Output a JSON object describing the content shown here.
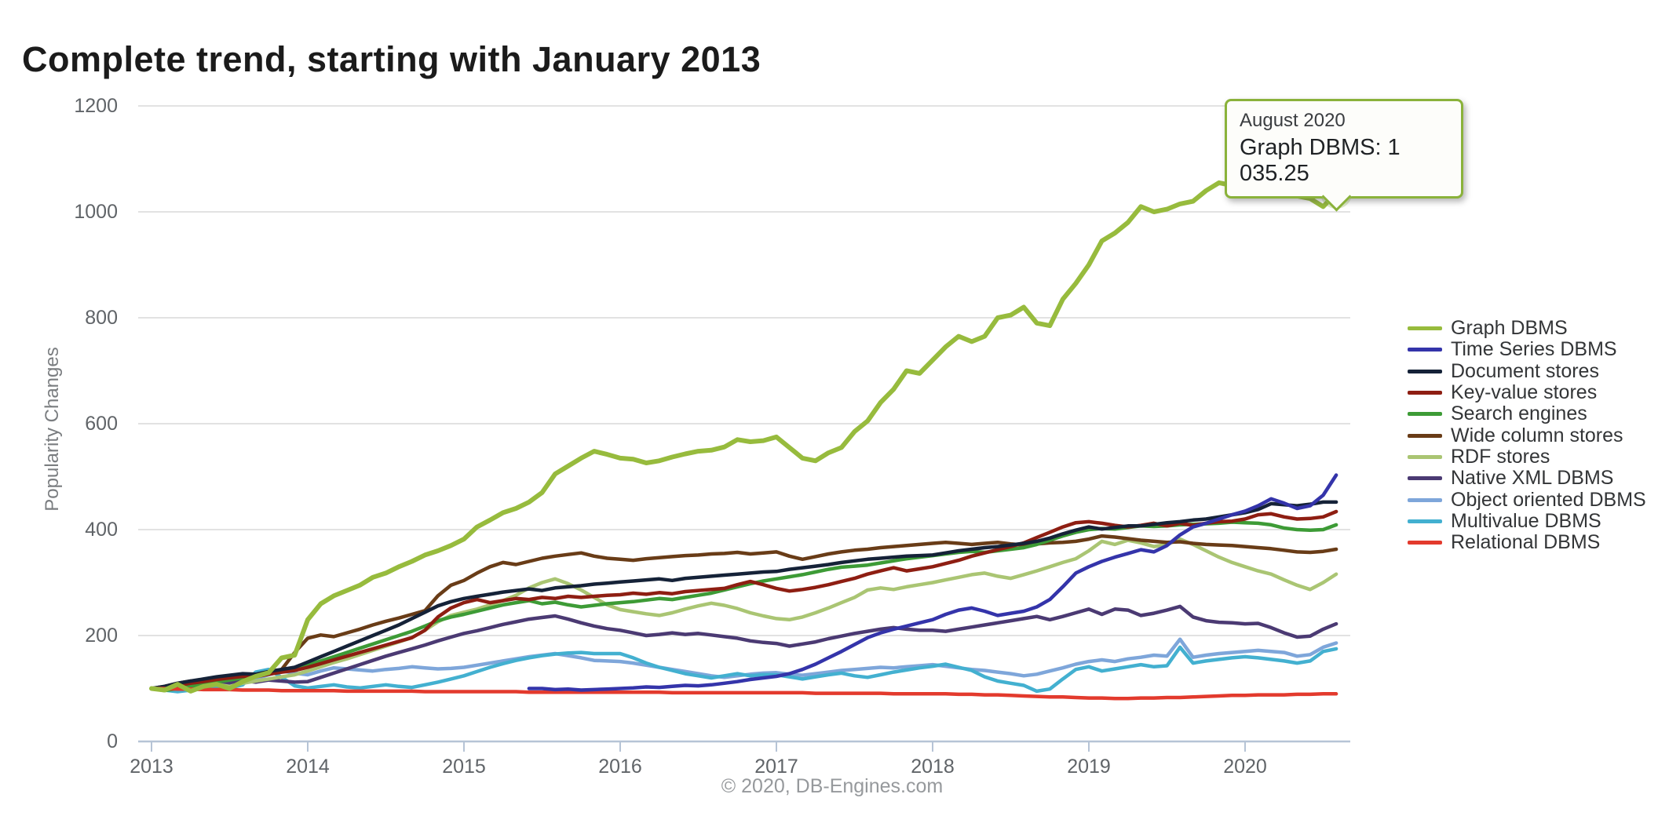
{
  "title": "Complete trend, starting with January 2013",
  "y_axis": {
    "label": "Popularity Changes",
    "ticks": [
      0,
      200,
      400,
      600,
      800,
      1000,
      1200
    ]
  },
  "x_axis": {
    "years": [
      "2013",
      "2014",
      "2015",
      "2016",
      "2017",
      "2018",
      "2019",
      "2020"
    ]
  },
  "footer": {
    "credit": "© 2020, DB-Engines.com"
  },
  "tooltip": {
    "date_label": "August 2020",
    "value_label": "Graph DBMS: 1 035.25",
    "accent_color": "#8ab23a"
  },
  "chart_data": {
    "type": "line",
    "title": "Complete trend, starting with January 2013",
    "ylabel": "Popularity Changes",
    "xlabel": "",
    "x_unit": "month",
    "x_start": "2013-01",
    "x_end": "2020-08",
    "months_total": 92,
    "ylim": [
      0,
      1260
    ],
    "grid": true,
    "legend_position": "right",
    "axis_color": "#b6c4d6",
    "grid_color": "#d9d9d9",
    "highlight": {
      "series": "Graph DBMS",
      "month": "2020-08",
      "value": 1035.25,
      "marker_color": "#8cb43c"
    },
    "series": [
      {
        "name": "Graph DBMS",
        "color": "#97bb3d",
        "stroke_width": 6,
        "start_month_index": 0,
        "values": [
          100,
          97,
          108,
          95,
          104,
          108,
          100,
          113,
          123,
          130,
          158,
          163,
          230,
          260,
          275,
          285,
          295,
          310,
          318,
          330,
          340,
          352,
          360,
          370,
          382,
          405,
          418,
          432,
          440,
          452,
          470,
          505,
          520,
          535,
          548,
          542,
          535,
          533,
          526,
          530,
          537,
          543,
          548,
          550,
          556,
          570,
          566,
          568,
          575,
          555,
          535,
          530,
          545,
          555,
          585,
          605,
          640,
          665,
          700,
          695,
          720,
          745,
          765,
          755,
          765,
          800,
          805,
          820,
          790,
          785,
          835,
          865,
          900,
          945,
          960,
          980,
          1010,
          1000,
          1005,
          1015,
          1020,
          1040,
          1055,
          1050,
          1055,
          1065,
          1060,
          1050,
          1030,
          1025,
          1010,
          1035.25
        ]
      },
      {
        "name": "Time Series DBMS",
        "color": "#3434aa",
        "stroke_width": 4.5,
        "start_month_index": 29,
        "values": [
          100,
          100,
          98,
          99,
          97,
          98,
          99,
          100,
          101,
          103,
          102,
          104,
          106,
          105,
          107,
          110,
          113,
          117,
          120,
          123,
          128,
          136,
          146,
          158,
          170,
          183,
          196,
          205,
          212,
          218,
          224,
          230,
          240,
          248,
          252,
          246,
          238,
          242,
          246,
          254,
          268,
          292,
          318,
          330,
          340,
          348,
          355,
          362,
          358,
          370,
          390,
          405,
          412,
          420,
          428,
          435,
          445,
          458,
          450,
          440,
          445,
          465,
          503
        ]
      },
      {
        "name": "Document stores",
        "color": "#152238",
        "stroke_width": 4.5,
        "start_month_index": 0,
        "values": [
          100,
          104,
          110,
          114,
          118,
          122,
          125,
          128,
          127,
          132,
          136,
          140,
          150,
          160,
          170,
          180,
          190,
          200,
          210,
          220,
          232,
          244,
          256,
          264,
          270,
          274,
          278,
          282,
          285,
          288,
          285,
          290,
          292,
          294,
          297,
          299,
          301,
          303,
          305,
          307,
          304,
          308,
          310,
          312,
          314,
          316,
          318,
          320,
          321,
          325,
          328,
          331,
          334,
          338,
          341,
          344,
          346,
          348,
          350,
          351,
          352,
          356,
          360,
          363,
          366,
          368,
          371,
          374,
          378,
          384,
          392,
          399,
          405,
          401,
          404,
          407,
          407,
          410,
          413,
          415,
          418,
          420,
          424,
          428,
          432,
          438,
          449,
          447,
          445,
          448,
          452,
          452
        ]
      },
      {
        "name": "Key-value stores",
        "color": "#8e1e12",
        "stroke_width": 4.5,
        "start_month_index": 0,
        "values": [
          100,
          102,
          106,
          110,
          113,
          117,
          120,
          123,
          122,
          127,
          131,
          134,
          140,
          147,
          154,
          161,
          168,
          175,
          182,
          189,
          196,
          210,
          235,
          252,
          262,
          268,
          262,
          266,
          270,
          268,
          272,
          270,
          274,
          272,
          274,
          276,
          277,
          280,
          278,
          281,
          279,
          283,
          285,
          287,
          289,
          296,
          302,
          296,
          289,
          284,
          287,
          291,
          296,
          302,
          308,
          316,
          322,
          328,
          322,
          326,
          330,
          336,
          342,
          350,
          356,
          362,
          368,
          375,
          385,
          395,
          405,
          413,
          415,
          412,
          408,
          405,
          408,
          412,
          407,
          412,
          408,
          412,
          415,
          416,
          420,
          428,
          430,
          424,
          420,
          421,
          424,
          434
        ]
      },
      {
        "name": "Search engines",
        "color": "#3d9b36",
        "stroke_width": 4.5,
        "start_month_index": 0,
        "values": [
          100,
          96,
          100,
          104,
          108,
          112,
          116,
          120,
          124,
          128,
          132,
          136,
          144,
          152,
          160,
          168,
          176,
          184,
          192,
          200,
          208,
          218,
          228,
          235,
          240,
          246,
          252,
          258,
          262,
          266,
          260,
          263,
          258,
          254,
          257,
          260,
          262,
          264,
          267,
          270,
          268,
          272,
          276,
          280,
          286,
          292,
          298,
          303,
          307,
          311,
          315,
          320,
          325,
          329,
          331,
          333,
          337,
          341,
          345,
          348,
          351,
          354,
          357,
          359,
          357,
          360,
          363,
          366,
          372,
          380,
          388,
          395,
          400,
          402,
          401,
          404,
          407,
          406,
          407,
          409,
          410,
          411,
          412,
          414,
          413,
          412,
          409,
          403,
          400,
          399,
          400,
          409
        ]
      },
      {
        "name": "Wide column stores",
        "color": "#693c17",
        "stroke_width": 4.5,
        "start_month_index": 0,
        "values": [
          100,
          104,
          110,
          114,
          112,
          118,
          122,
          126,
          124,
          130,
          136,
          168,
          195,
          201,
          198,
          205,
          212,
          220,
          227,
          233,
          240,
          247,
          275,
          295,
          304,
          318,
          330,
          338,
          334,
          340,
          346,
          350,
          353,
          356,
          350,
          346,
          344,
          342,
          345,
          347,
          349,
          351,
          352,
          354,
          355,
          357,
          354,
          356,
          358,
          350,
          344,
          349,
          354,
          358,
          361,
          363,
          366,
          368,
          370,
          372,
          374,
          376,
          374,
          372,
          374,
          376,
          373,
          371,
          373,
          375,
          376,
          378,
          382,
          388,
          386,
          383,
          380,
          378,
          376,
          377,
          374,
          372,
          371,
          370,
          368,
          366,
          364,
          361,
          358,
          357,
          359,
          363
        ]
      },
      {
        "name": "RDF stores",
        "color": "#aac573",
        "stroke_width": 4.5,
        "start_month_index": 0,
        "values": [
          100,
          98,
          103,
          100,
          105,
          108,
          104,
          110,
          114,
          118,
          122,
          126,
          133,
          141,
          149,
          156,
          164,
          172,
          180,
          188,
          196,
          210,
          226,
          238,
          244,
          250,
          258,
          266,
          276,
          290,
          300,
          307,
          298,
          286,
          272,
          258,
          249,
          245,
          241,
          238,
          243,
          250,
          256,
          261,
          257,
          251,
          243,
          237,
          232,
          230,
          235,
          243,
          252,
          262,
          272,
          286,
          290,
          287,
          292,
          296,
          300,
          305,
          310,
          315,
          318,
          312,
          308,
          315,
          322,
          330,
          338,
          345,
          360,
          378,
          372,
          380,
          375,
          368,
          372,
          382,
          372,
          360,
          348,
          338,
          330,
          322,
          316,
          305,
          295,
          287,
          300,
          316
        ]
      },
      {
        "name": "Native XML DBMS",
        "color": "#4b3a73",
        "stroke_width": 4.5,
        "start_month_index": 0,
        "values": [
          100,
          102,
          106,
          103,
          108,
          112,
          110,
          115,
          112,
          116,
          114,
          112,
          113,
          121,
          129,
          137,
          145,
          153,
          161,
          168,
          175,
          182,
          190,
          197,
          204,
          209,
          215,
          221,
          226,
          231,
          234,
          237,
          231,
          224,
          218,
          213,
          210,
          205,
          200,
          202,
          205,
          202,
          204,
          201,
          198,
          195,
          190,
          187,
          185,
          180,
          184,
          188,
          194,
          199,
          204,
          208,
          212,
          215,
          212,
          210,
          210,
          208,
          212,
          216,
          220,
          224,
          228,
          232,
          236,
          230,
          236,
          243,
          250,
          240,
          250,
          248,
          238,
          242,
          248,
          255,
          235,
          228,
          225,
          224,
          222,
          223,
          215,
          205,
          197,
          199,
          212,
          222
        ]
      },
      {
        "name": "Object oriented DBMS",
        "color": "#7ea6da",
        "stroke_width": 4.5,
        "start_month_index": 0,
        "values": [
          100,
          98,
          96,
          98,
          101,
          105,
          109,
          113,
          119,
          126,
          133,
          129,
          126,
          133,
          139,
          137,
          135,
          133,
          136,
          138,
          141,
          139,
          137,
          138,
          140,
          144,
          148,
          152,
          156,
          160,
          163,
          166,
          162,
          158,
          153,
          152,
          151,
          148,
          144,
          140,
          136,
          132,
          128,
          124,
          121,
          124,
          127,
          129,
          130,
          127,
          125,
          128,
          131,
          134,
          136,
          138,
          140,
          139,
          141,
          143,
          145,
          142,
          139,
          136,
          134,
          131,
          128,
          124,
          127,
          133,
          139,
          146,
          151,
          154,
          151,
          156,
          159,
          163,
          161,
          193,
          159,
          163,
          166,
          168,
          170,
          172,
          170,
          168,
          161,
          164,
          178,
          186
        ]
      },
      {
        "name": "Multivalue DBMS",
        "color": "#43b0d0",
        "stroke_width": 4.5,
        "start_month_index": 0,
        "values": [
          100,
          97,
          94,
          97,
          100,
          104,
          101,
          107,
          131,
          136,
          121,
          105,
          101,
          104,
          107,
          103,
          101,
          104,
          107,
          104,
          102,
          107,
          112,
          118,
          124,
          132,
          140,
          147,
          153,
          158,
          162,
          165,
          167,
          168,
          166,
          166,
          166,
          158,
          148,
          140,
          134,
          128,
          124,
          120,
          124,
          128,
          124,
          126,
          126,
          122,
          118,
          122,
          126,
          129,
          124,
          121,
          126,
          131,
          135,
          139,
          142,
          146,
          140,
          134,
          122,
          114,
          110,
          106,
          95,
          99,
          118,
          136,
          141,
          133,
          137,
          141,
          145,
          141,
          143,
          178,
          148,
          152,
          155,
          158,
          160,
          158,
          155,
          152,
          148,
          152,
          170,
          175
        ]
      },
      {
        "name": "Relational DBMS",
        "color": "#e33a2d",
        "stroke_width": 4.5,
        "start_month_index": 0,
        "values": [
          100,
          100,
          99,
          99,
          98,
          98,
          98,
          97,
          97,
          97,
          96,
          96,
          96,
          96,
          96,
          95,
          95,
          95,
          95,
          95,
          95,
          94,
          94,
          94,
          94,
          94,
          94,
          94,
          94,
          93,
          93,
          93,
          93,
          93,
          93,
          93,
          93,
          93,
          93,
          93,
          92,
          92,
          92,
          92,
          92,
          92,
          92,
          92,
          92,
          92,
          92,
          91,
          91,
          91,
          91,
          91,
          91,
          90,
          90,
          90,
          90,
          90,
          89,
          89,
          88,
          88,
          87,
          86,
          85,
          84,
          84,
          83,
          82,
          82,
          81,
          81,
          82,
          82,
          83,
          83,
          84,
          85,
          86,
          87,
          87,
          88,
          88,
          88,
          89,
          89,
          90,
          90
        ]
      }
    ]
  }
}
